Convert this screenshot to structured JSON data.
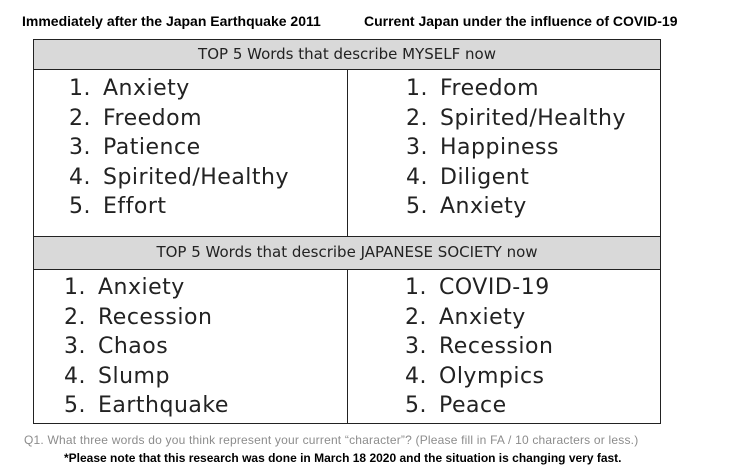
{
  "headers": {
    "left": "Immediately after the Japan Earthquake 2011",
    "right": "Current Japan under the influence of COVID-19"
  },
  "myself": {
    "title": "TOP 5 Words that describe MYSELF now",
    "left_list": [
      {
        "num": "1.",
        "word": "Anxiety"
      },
      {
        "num": "2.",
        "word": "Freedom"
      },
      {
        "num": "3.",
        "word": "Patience"
      },
      {
        "num": "4.",
        "word": "Spirited/Healthy"
      },
      {
        "num": "5.",
        "word": "Effort"
      }
    ],
    "right_list": [
      {
        "num": "1.",
        "word": "Freedom"
      },
      {
        "num": "2.",
        "word": "Spirited/Healthy"
      },
      {
        "num": "3.",
        "word": "Happiness"
      },
      {
        "num": "4.",
        "word": "Diligent"
      },
      {
        "num": "5.",
        "word": "Anxiety"
      }
    ]
  },
  "society": {
    "title": "TOP 5 Words that describe JAPANESE SOCIETY now",
    "left_list": [
      {
        "num": "1.",
        "word": "Anxiety"
      },
      {
        "num": "2.",
        "word": "Recession"
      },
      {
        "num": "3.",
        "word": "Chaos"
      },
      {
        "num": "4.",
        "word": "Slump"
      },
      {
        "num": "5.",
        "word": "Earthquake"
      }
    ],
    "right_list": [
      {
        "num": "1.",
        "word": "COVID-19"
      },
      {
        "num": "2.",
        "word": "Anxiety"
      },
      {
        "num": "3.",
        "word": "Recession"
      },
      {
        "num": "4.",
        "word": "Olympics"
      },
      {
        "num": "5.",
        "word": "Peace"
      }
    ]
  },
  "question": "Q1. What three words do you think represent your current “character”? (Please fill in FA / 10 characters or less.)",
  "note": "*Please note that this research was done in March 18 2020 and the situation is changing very fast."
}
